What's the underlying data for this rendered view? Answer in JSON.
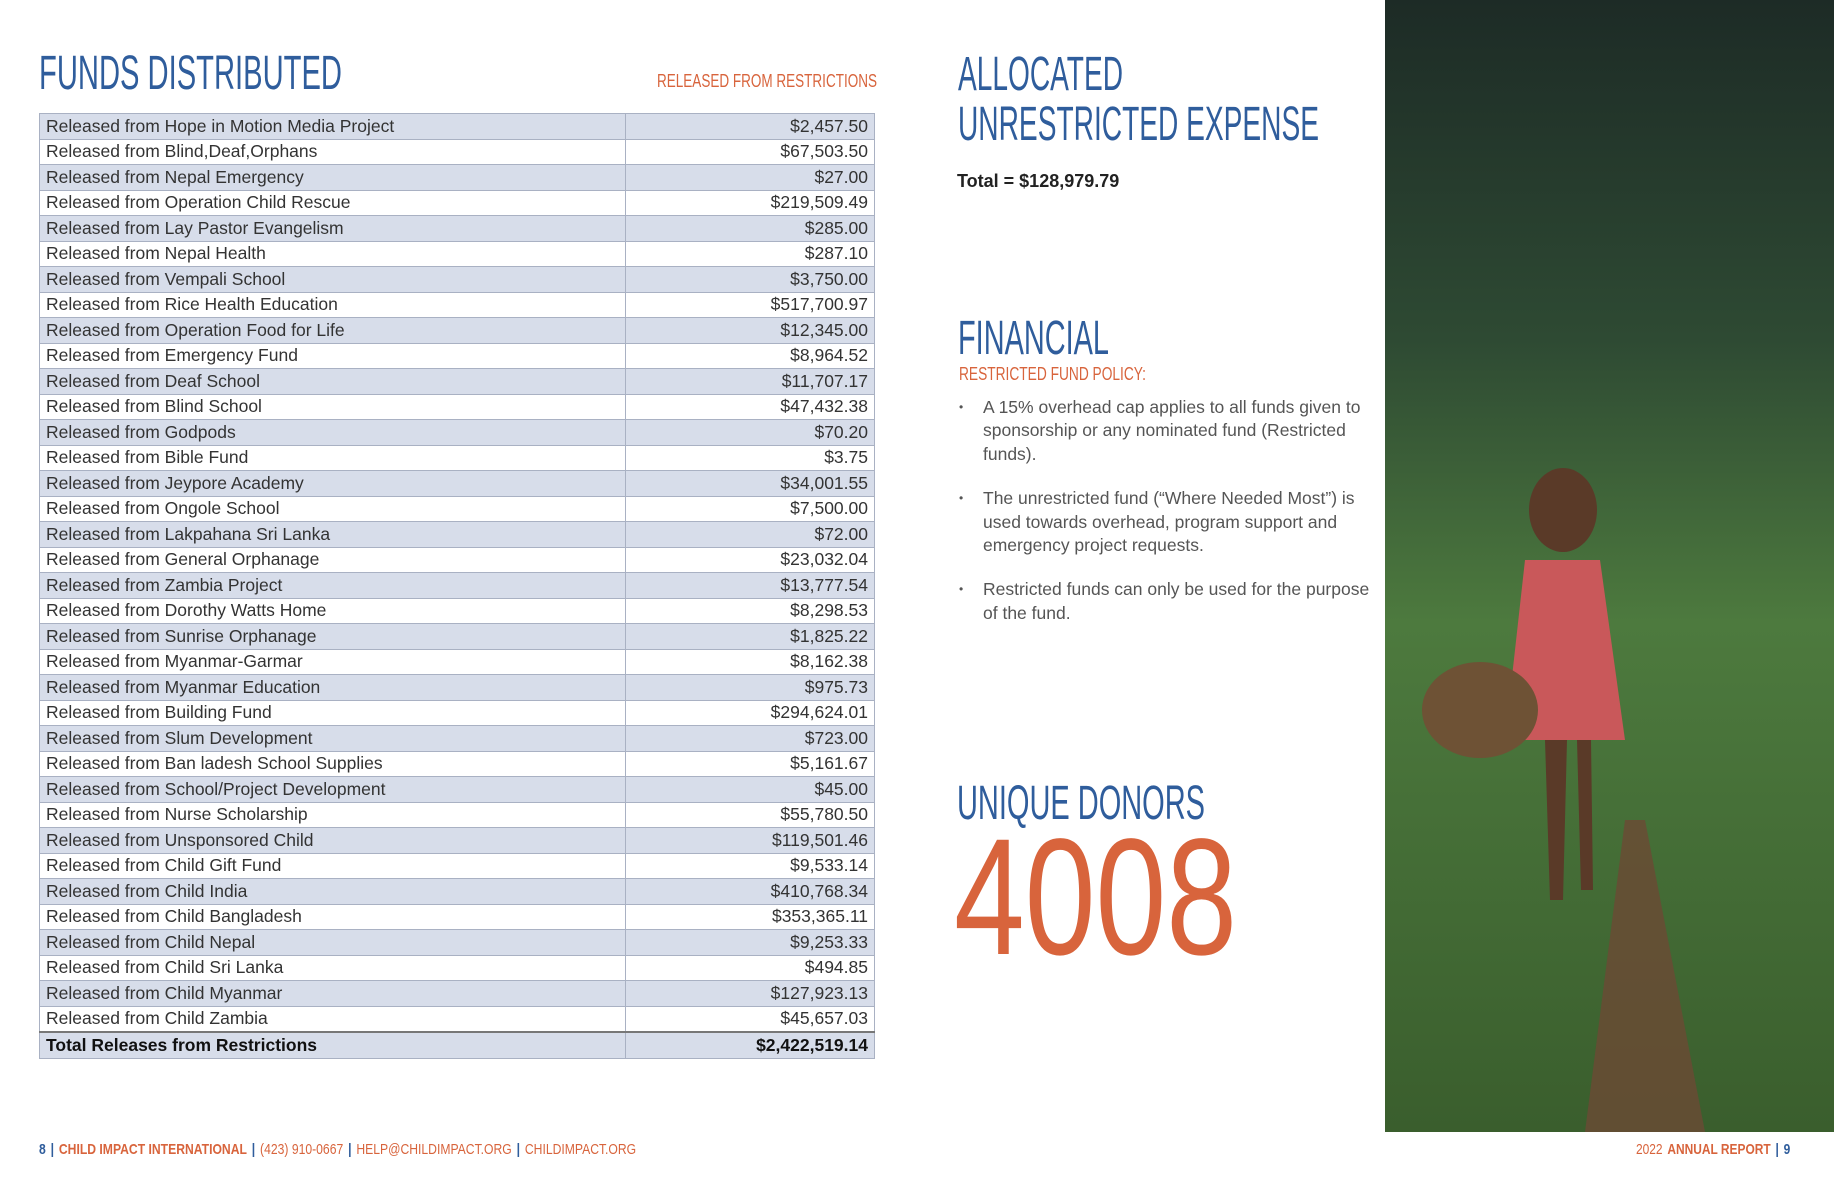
{
  "left": {
    "title": "FUNDS DISTRIBUTED",
    "subtitle": "RELEASED FROM RESTRICTIONS",
    "table": {
      "rows": [
        [
          "Released from Hope in Motion Media Project",
          "$2,457.50"
        ],
        [
          "Released from Blind,Deaf,Orphans",
          "$67,503.50"
        ],
        [
          "Released from Nepal Emergency",
          "$27.00"
        ],
        [
          "Released from Operation Child Rescue",
          "$219,509.49"
        ],
        [
          "Released from Lay Pastor Evangelism",
          "$285.00"
        ],
        [
          "Released from Nepal Health",
          "$287.10"
        ],
        [
          "Released from Vempali School",
          "$3,750.00"
        ],
        [
          "Released from Rice Health Education",
          "$517,700.97"
        ],
        [
          "Released from Operation Food for Life",
          "$12,345.00"
        ],
        [
          "Released from Emergency Fund",
          "$8,964.52"
        ],
        [
          "Released from Deaf School",
          "$11,707.17"
        ],
        [
          "Released from Blind School",
          "$47,432.38"
        ],
        [
          "Released from Godpods",
          "$70.20"
        ],
        [
          "Released from Bible Fund",
          "$3.75"
        ],
        [
          "Released from Jeypore Academy",
          "$34,001.55"
        ],
        [
          "Released from Ongole School",
          "$7,500.00"
        ],
        [
          "Released from Lakpahana Sri Lanka",
          "$72.00"
        ],
        [
          "Released from General Orphanage",
          "$23,032.04"
        ],
        [
          "Released from Zambia Project",
          "$13,777.54"
        ],
        [
          "Released from Dorothy Watts Home",
          "$8,298.53"
        ],
        [
          "Released from Sunrise Orphanage",
          "$1,825.22"
        ],
        [
          "Released from Myanmar-Garmar",
          "$8,162.38"
        ],
        [
          "Released from Myanmar Education",
          "$975.73"
        ],
        [
          "Released from Building Fund",
          "$294,624.01"
        ],
        [
          "Released from Slum Development",
          "$723.00"
        ],
        [
          "Released from Ban ladesh School Supplies",
          "$5,161.67"
        ],
        [
          "Released from School/Project Development",
          "$45.00"
        ],
        [
          "Released from Nurse Scholarship",
          "$55,780.50"
        ],
        [
          "Released from Unsponsored Child",
          "$119,501.46"
        ],
        [
          "Released from Child Gift Fund",
          "$9,533.14"
        ],
        [
          "Released from Child India",
          "$410,768.34"
        ],
        [
          "Released from Child Bangladesh",
          "$353,365.11"
        ],
        [
          "Released from Child Nepal",
          "$9,253.33"
        ],
        [
          "Released from Child Sri Lanka",
          "$494.85"
        ],
        [
          "Released from Child Myanmar",
          "$127,923.13"
        ],
        [
          "Released from Child Zambia",
          "$45,657.03"
        ]
      ],
      "total": [
        "Total Releases from Restrictions",
        "$2,422,519.14"
      ]
    }
  },
  "right": {
    "allocated": {
      "title_lines": [
        "ALLOCATED",
        "UNRESTRICTED EXPENSE"
      ],
      "total": "Total = $128,979.79"
    },
    "financial": {
      "title": "FINANCIAL",
      "subtitle": "RESTRICTED FUND POLICY:",
      "bullets": [
        "A 15% overhead cap applies to all funds given to sponsorship or any nominated fund (Restricted funds).",
        "The unrestricted fund (“Where Needed Most”) is used towards overhead, program support and emergency project requests.",
        "Restricted funds can only be used for the purpose of the fund."
      ]
    },
    "donors": {
      "title": "UNIQUE DONORS",
      "count": "4008"
    }
  },
  "footer": {
    "separator": "|",
    "left": {
      "page": "8",
      "org": "CHILD IMPACT INTERNATIONAL",
      "phone": "(423) 910-0667",
      "email": "HELP@CHILDIMPACT.ORG",
      "web": "CHILDIMPACT.ORG"
    },
    "right": {
      "year": "2022",
      "report": "ANNUAL REPORT",
      "page": "9"
    }
  }
}
